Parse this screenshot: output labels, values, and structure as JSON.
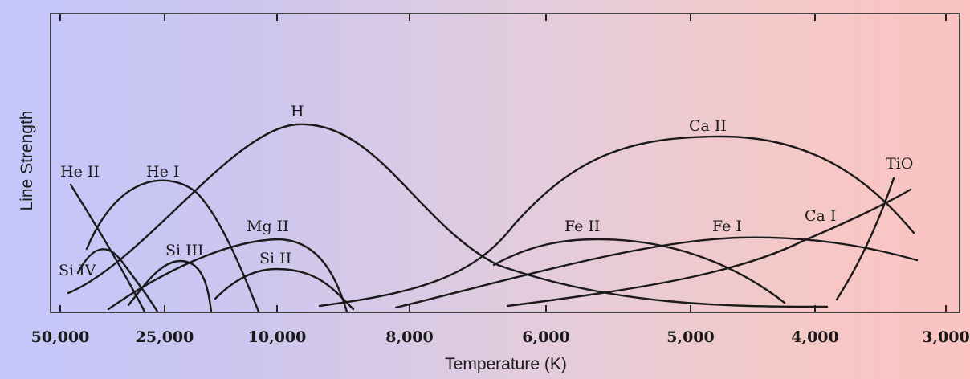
{
  "chart_data": {
    "type": "line",
    "xlabel": "Temperature (K)",
    "ylabel": "Line Strength",
    "x_scale": "categorical-nonlinear",
    "x_ticks": [
      "50,000",
      "25,000",
      "10,000",
      "8,000",
      "6,000",
      "5,000",
      "4,000",
      "3,000"
    ],
    "series": [
      {
        "name": "He II"
      },
      {
        "name": "He I"
      },
      {
        "name": "H"
      },
      {
        "name": "Mg II"
      },
      {
        "name": "Si III"
      },
      {
        "name": "Si II"
      },
      {
        "name": "Si IV"
      },
      {
        "name": "Ca II"
      },
      {
        "name": "Fe II"
      },
      {
        "name": "Fe I"
      },
      {
        "name": "Ca I"
      },
      {
        "name": "TiO"
      }
    ],
    "grid": false,
    "legend": "none (labels placed on curves)"
  }
}
